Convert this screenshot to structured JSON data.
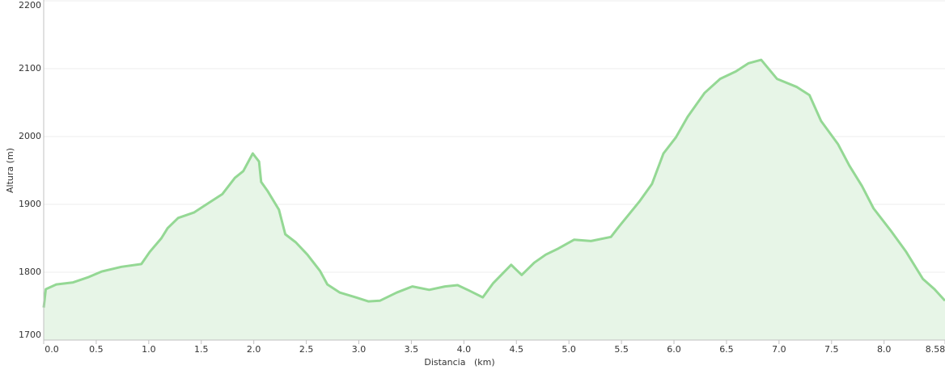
{
  "chart_data": {
    "type": "area",
    "x_label": "Distancia   (km)",
    "y_label": "Altura (m)",
    "color": "#94d894",
    "fill": "#e7f5e7",
    "grid": true,
    "x": [
      0.0,
      0.02,
      0.12,
      0.28,
      0.43,
      0.55,
      0.74,
      0.93,
      1.01,
      1.12,
      1.18,
      1.28,
      1.43,
      1.55,
      1.7,
      1.82,
      1.9,
      1.99,
      2.05,
      2.07,
      2.13,
      2.24,
      2.3,
      2.4,
      2.51,
      2.63,
      2.7,
      2.82,
      2.97,
      3.09,
      3.2,
      3.36,
      3.51,
      3.67,
      3.82,
      3.94,
      4.05,
      4.18,
      4.28,
      4.45,
      4.55,
      4.67,
      4.78,
      4.9,
      5.05,
      5.21,
      5.4,
      5.48,
      5.67,
      5.79,
      5.9,
      6.02,
      6.13,
      6.29,
      6.44,
      6.59,
      6.71,
      6.83,
      6.98,
      7.17,
      7.29,
      7.4,
      7.56,
      7.67,
      7.79,
      7.9,
      8.06,
      8.21,
      8.37,
      8.48,
      8.58
    ],
    "values": [
      1748,
      1775,
      1782,
      1785,
      1793,
      1801,
      1808,
      1812,
      1830,
      1850,
      1865,
      1880,
      1888,
      1900,
      1915,
      1939,
      1949,
      1975,
      1963,
      1933,
      1920,
      1892,
      1856,
      1844,
      1826,
      1802,
      1782,
      1770,
      1763,
      1757,
      1758,
      1770,
      1779,
      1774,
      1779,
      1781,
      1773,
      1763,
      1784,
      1811,
      1796,
      1814,
      1826,
      1835,
      1848,
      1846,
      1852,
      1868,
      1904,
      1930,
      1975,
      1999,
      2029,
      2064,
      2085,
      2096,
      2108,
      2113,
      2085,
      2073,
      2061,
      2023,
      1989,
      1957,
      1927,
      1894,
      1862,
      1830,
      1790,
      1775,
      1758
    ],
    "xlim": [
      0,
      8.58
    ],
    "ylim": [
      1700,
      2200
    ],
    "xticks": [
      {
        "value": 0,
        "label": "0.0"
      },
      0.5,
      {
        "value": 1,
        "label": "1.0"
      },
      1.5,
      {
        "value": 2,
        "label": "2.0"
      },
      2.5,
      {
        "value": 3,
        "label": "3.0"
      },
      3.5,
      {
        "value": 4,
        "label": "4.0"
      },
      4.5,
      {
        "value": 5,
        "label": "5.0"
      },
      5.5,
      {
        "value": 6,
        "label": "6.0"
      },
      6.5,
      {
        "value": 7,
        "label": "7.0"
      },
      7.5,
      {
        "value": 8,
        "label": "8.0"
      },
      8.58
    ],
    "yticks": [
      1700,
      1800,
      1900,
      2000,
      2100,
      2200
    ]
  }
}
